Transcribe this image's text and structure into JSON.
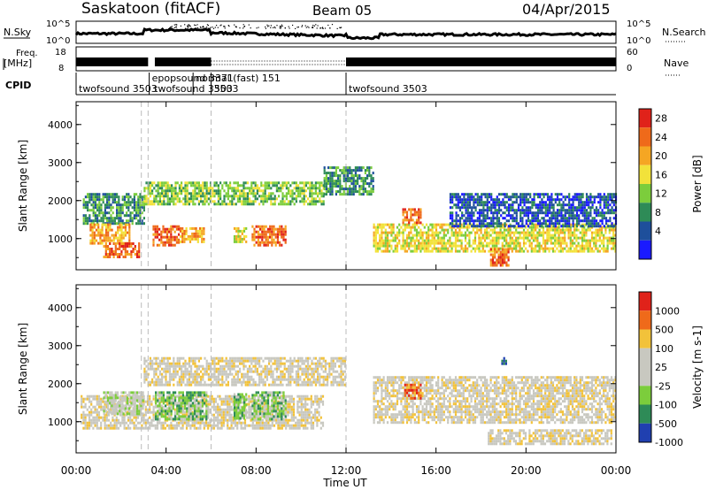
{
  "header": {
    "station": "Saskatoon (fitACF)",
    "beam": "Beam 05",
    "date": "04/Apr/2015"
  },
  "strip_labels": {
    "nsky": "N.Sky",
    "nsky_ticks": [
      "10^5",
      "10^0"
    ],
    "nsearch": "N.Search",
    "nsearch_ticks": [
      "10^5",
      "10^0"
    ],
    "freq_label_1": "Freq.",
    "freq_label_2": "[MHz]",
    "freq_ticks": [
      "18",
      "8"
    ],
    "nave": "Nave",
    "nave_ticks": [
      "60",
      "0"
    ],
    "cpid": "CPID"
  },
  "cpid_entries": [
    {
      "label": "twofsound 3503",
      "time_h": 0.0,
      "row": 1
    },
    {
      "label": "epopsound 3371",
      "time_h": 3.25,
      "row": 0
    },
    {
      "label": "normal (fast) 151",
      "time_h": 5.2,
      "row": 0
    },
    {
      "label": "twofsound 3503",
      "time_h": 3.35,
      "row": 1
    },
    {
      "label": "3503",
      "time_h": 6.0,
      "row": 1
    },
    {
      "label": "twofsound 3503",
      "time_h": 12.0,
      "row": 1
    }
  ],
  "chart_data": [
    {
      "type": "heatmap",
      "panel": "power",
      "ylabel": "Slant Range [km]",
      "ylim": [
        180,
        4600
      ],
      "yticks": [
        1000,
        2000,
        3000,
        4000
      ],
      "xlim": [
        0,
        24
      ],
      "colorbar": {
        "label": "Power [dB]",
        "ticks": [
          "28",
          "24",
          "20",
          "16",
          "12",
          "8",
          "4"
        ]
      },
      "regions": [
        {
          "t0": 0.3,
          "t1": 3.0,
          "r0": 1400,
          "r1": 2200,
          "level": 2
        },
        {
          "t0": 0.6,
          "t1": 2.4,
          "r0": 900,
          "r1": 1400,
          "level": 5
        },
        {
          "t0": 1.2,
          "t1": 2.8,
          "r0": 550,
          "r1": 900,
          "level": 6
        },
        {
          "t0": 3.4,
          "t1": 4.6,
          "r0": 800,
          "r1": 1350,
          "level": 6
        },
        {
          "t0": 4.6,
          "t1": 5.7,
          "r0": 900,
          "r1": 1300,
          "level": 5
        },
        {
          "t0": 7.0,
          "t1": 7.6,
          "r0": 950,
          "r1": 1300,
          "level": 4
        },
        {
          "t0": 7.8,
          "t1": 9.3,
          "r0": 850,
          "r1": 1350,
          "level": 6
        },
        {
          "t0": 3.0,
          "t1": 11.0,
          "r0": 1900,
          "r1": 2500,
          "level": 3
        },
        {
          "t0": 11.0,
          "t1": 13.2,
          "r0": 2200,
          "r1": 2900,
          "level": 2
        },
        {
          "t0": 13.2,
          "t1": 24.0,
          "r0": 700,
          "r1": 1400,
          "level": 4
        },
        {
          "t0": 18.4,
          "t1": 19.2,
          "r0": 280,
          "r1": 750,
          "level": 6
        },
        {
          "t0": 14.5,
          "t1": 15.3,
          "r0": 1400,
          "r1": 1800,
          "level": 6
        },
        {
          "t0": 16.6,
          "t1": 24.0,
          "r0": 1300,
          "r1": 2200,
          "level": 1
        }
      ]
    },
    {
      "type": "heatmap",
      "panel": "velocity",
      "ylabel": "Slant Range [km]",
      "xlabel": "Time UT",
      "ylim": [
        180,
        4600
      ],
      "yticks": [
        1000,
        2000,
        3000,
        4000
      ],
      "xlim": [
        0,
        24
      ],
      "xticks": [
        "00:00",
        "04:00",
        "08:00",
        "12:00",
        "16:00",
        "20:00",
        "00:00"
      ],
      "colorbar": {
        "label": "Velocity [m s-1]",
        "ticks": [
          "1000",
          "500",
          "100",
          "25",
          "-25",
          "-100",
          "-500",
          "-1000"
        ]
      },
      "regions": [
        {
          "t0": 0.2,
          "t1": 11.0,
          "r0": 800,
          "r1": 1700,
          "level": 4
        },
        {
          "t0": 1.2,
          "t1": 3.0,
          "r0": 1200,
          "r1": 1800,
          "level": 3
        },
        {
          "t0": 3.5,
          "t1": 5.8,
          "r0": 1050,
          "r1": 1800,
          "level": 2
        },
        {
          "t0": 7.0,
          "t1": 7.6,
          "r0": 1100,
          "r1": 1750,
          "level": 2
        },
        {
          "t0": 7.8,
          "t1": 9.3,
          "r0": 1050,
          "r1": 1800,
          "level": 2
        },
        {
          "t0": 3.0,
          "t1": 12.0,
          "r0": 2000,
          "r1": 2700,
          "level": 4
        },
        {
          "t0": 13.2,
          "t1": 24.0,
          "r0": 1000,
          "r1": 2200,
          "level": 4
        },
        {
          "t0": 14.5,
          "t1": 15.3,
          "r0": 1600,
          "r1": 2000,
          "level": 6
        },
        {
          "t0": 18.3,
          "t1": 23.8,
          "r0": 400,
          "r1": 800,
          "level": 4
        },
        {
          "t0": 18.9,
          "t1": 19.1,
          "r0": 2500,
          "r1": 2700,
          "level": 0
        }
      ]
    }
  ],
  "colors": {
    "power_scale": [
      "#1a1aff",
      "#1e4f9b",
      "#2e8b57",
      "#7ccd3c",
      "#f2e23a",
      "#f5a623",
      "#ef6a1a",
      "#e0221a"
    ],
    "velocity_scale": [
      "#2040b0",
      "#2e8b57",
      "#7ccd3c",
      "#c8c8c0",
      "#c8c8c0",
      "#f2c23a",
      "#ef6a1a",
      "#e0221a"
    ]
  }
}
